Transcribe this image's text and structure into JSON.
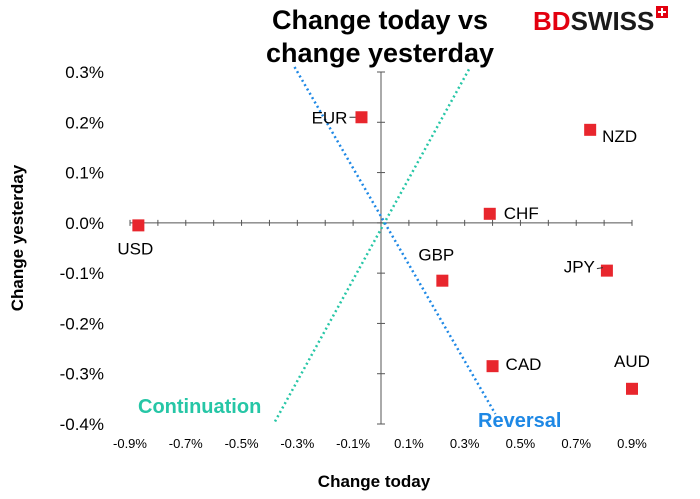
{
  "title_line1": "Change today vs",
  "title_line2": "change yesterday",
  "logo": {
    "part1": "BD",
    "part2": "SWISS",
    "brand_color": "#e3000f"
  },
  "chart_data": {
    "type": "scatter",
    "title": "Change today vs change yesterday",
    "xlabel": "Change today",
    "ylabel": "Change yesterday",
    "xlim": [
      -0.9,
      0.9
    ],
    "ylim": [
      -0.4,
      0.3
    ],
    "x_ticks": [
      -0.9,
      -0.7,
      -0.5,
      -0.3,
      -0.1,
      0.1,
      0.3,
      0.5,
      0.7,
      0.9
    ],
    "x_tick_labels": [
      "-0.9%",
      "-0.7%",
      "-0.5%",
      "-0.3%",
      "-0.1%",
      "0.1%",
      "0.3%",
      "0.5%",
      "0.7%",
      "0.9%"
    ],
    "y_ticks": [
      0.3,
      0.2,
      0.1,
      0.0,
      -0.1,
      -0.2,
      -0.3,
      -0.4
    ],
    "y_tick_labels": [
      "0.3%",
      "0.2%",
      "0.1%",
      "0.0%",
      "-0.1%",
      "-0.2%",
      "-0.3%",
      "-0.4%"
    ],
    "grid": false,
    "marker_color": "#e8262d",
    "points": [
      {
        "label": "USD",
        "x": -0.87,
        "y": -0.005
      },
      {
        "label": "EUR",
        "x": -0.07,
        "y": 0.21
      },
      {
        "label": "NZD",
        "x": 0.75,
        "y": 0.185
      },
      {
        "label": "CHF",
        "x": 0.39,
        "y": 0.018
      },
      {
        "label": "GBP",
        "x": 0.22,
        "y": -0.115
      },
      {
        "label": "JPY",
        "x": 0.81,
        "y": -0.095
      },
      {
        "label": "CAD",
        "x": 0.4,
        "y": -0.285
      },
      {
        "label": "AUD",
        "x": 0.9,
        "y": -0.33
      }
    ],
    "guide_lines": [
      {
        "name": "Continuation",
        "color": "#26c6a6",
        "from": [
          -0.38,
          -0.395
        ],
        "to": [
          0.32,
          0.31
        ]
      },
      {
        "name": "Reversal",
        "color": "#1e88e5",
        "from": [
          -0.31,
          0.31
        ],
        "to": [
          0.41,
          -0.38
        ]
      }
    ]
  },
  "annotations": {
    "continuation": "Continuation",
    "reversal": "Reversal"
  }
}
